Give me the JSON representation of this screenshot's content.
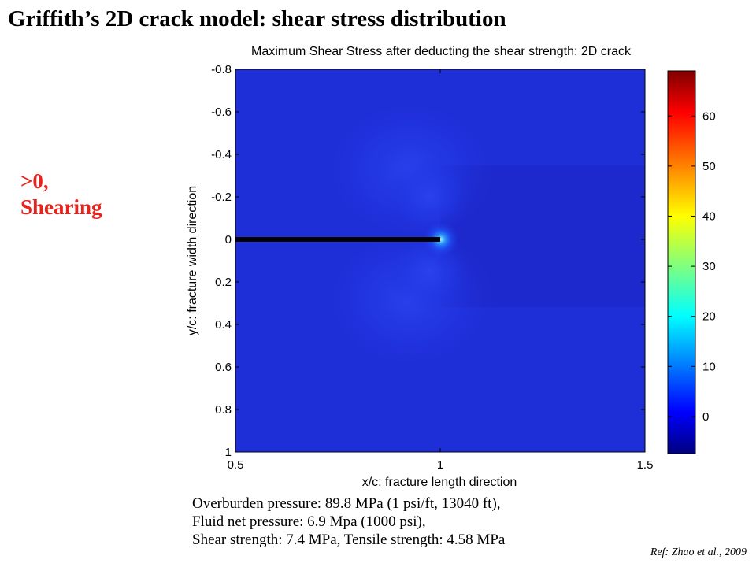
{
  "slide_title": "Griffith’s 2D crack model: shear stress distribution",
  "annotation": {
    "line1": ">0,",
    "line2": "Shearing"
  },
  "caption": {
    "line1": "Overburden pressure: 89.8 MPa (1 psi/ft, 13040 ft),",
    "line2": "Fluid net pressure: 6.9 Mpa (1000 psi),",
    "line3": "Shear strength: 7.4 MPa, Tensile strength: 4.58 MPa"
  },
  "reference": "Ref: Zhao et al., 2009",
  "colors": {
    "title_text": "#000000",
    "annotation_text": "#e8231d",
    "background_field": "#1f2fd8",
    "crack": "#000000"
  },
  "chart_data": {
    "type": "heatmap",
    "title": "Maximum Shear Stress after deducting the shear strength: 2D crack",
    "xlabel": "x/c: fracture length direction",
    "ylabel": "y/c: fracture width direction",
    "xlim": [
      0.5,
      1.5
    ],
    "ylim": [
      -0.8,
      1.0
    ],
    "y_axis_reversed": true,
    "x_ticks": [
      0.5,
      1,
      1.5
    ],
    "x_tick_labels": [
      "0.5",
      "1",
      "1.5"
    ],
    "y_ticks": [
      -0.8,
      -0.6,
      -0.4,
      -0.2,
      0,
      0.2,
      0.4,
      0.6,
      0.8,
      1
    ],
    "y_tick_labels": [
      "-0.8",
      "-0.6",
      "-0.4",
      "-0.2",
      "0",
      "0.2",
      "0.4",
      "0.6",
      "0.8",
      "1"
    ],
    "colormap": "jet",
    "colorbar": {
      "range": [
        -7.4,
        69
      ],
      "ticks": [
        0,
        10,
        20,
        30,
        40,
        50,
        60
      ],
      "tick_labels": [
        "0",
        "10",
        "20",
        "30",
        "40",
        "50",
        "60"
      ]
    },
    "crack": {
      "x_from": 0.5,
      "x_to": 1.0,
      "y": 0
    },
    "crack_tip": {
      "x": 1.0,
      "y": 0
    },
    "grid": false
  }
}
